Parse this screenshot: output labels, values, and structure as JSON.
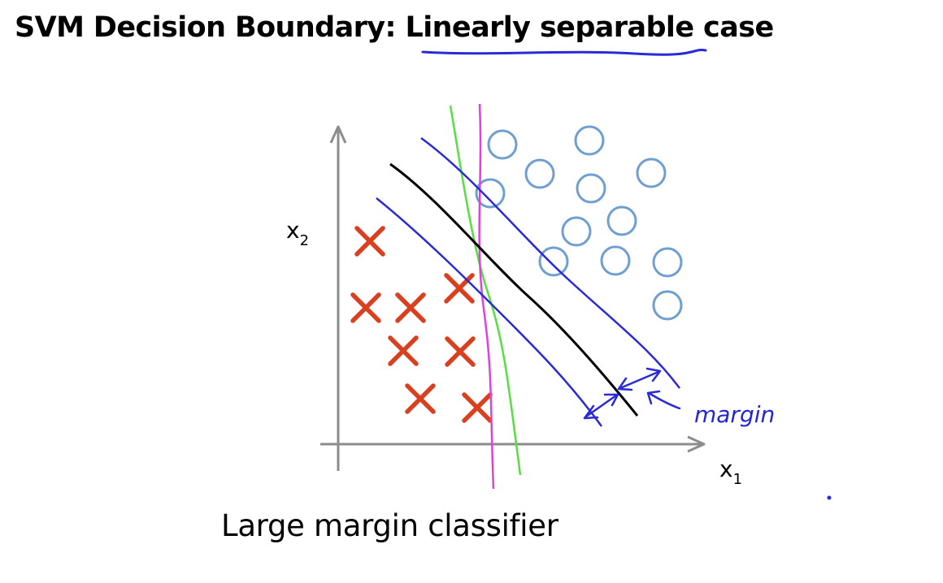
{
  "slide": {
    "title": {
      "prefix": "SVM Decision Boundary: ",
      "emphasis": "Linearly separable",
      "suffix": " case"
    },
    "caption": "Large margin classifier"
  },
  "diagram": {
    "x_axis_label": "x",
    "x_axis_subscript": "1",
    "y_axis_label": "x",
    "y_axis_subscript": "2",
    "annotation": "margin",
    "colors": {
      "negative_class_x": "#d9401f",
      "positive_class_o": "#6f9fd0",
      "svm_boundary": "#000000",
      "margin_lines": "#2a2ad8",
      "alt_boundary_green": "#55e040",
      "alt_boundary_magenta": "#e040e0",
      "axes": "#8c8c8c",
      "title_underline": "#2a2ad8"
    },
    "icons": {
      "negative_marker": "cross-icon",
      "positive_marker": "circle-icon"
    }
  }
}
